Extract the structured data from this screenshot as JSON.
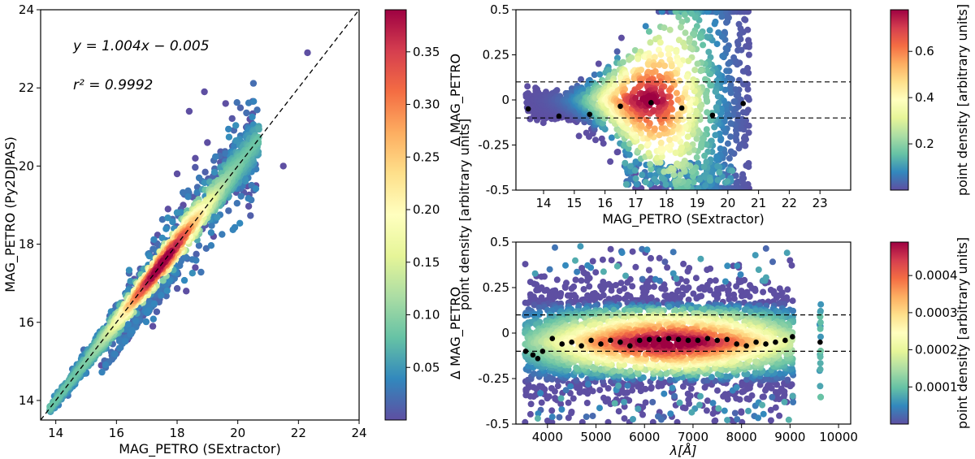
{
  "colors": {
    "colormap": [
      "#5e4fa2",
      "#3288bd",
      "#66c2a5",
      "#abdda4",
      "#e6f598",
      "#ffffbf",
      "#fee08b",
      "#fdae61",
      "#f46d43",
      "#d53e4f",
      "#9e0142"
    ],
    "outlier": "#5e4fa2",
    "median_marker": "#000000",
    "reference_line": "#000000"
  },
  "chart_data": [
    {
      "id": "left",
      "type": "scatter",
      "title": "",
      "xlabel": "MAG_PETRO (SExtractor)",
      "ylabel": "MAG_PETRO (Py2DJPAS)",
      "xlim": [
        13.5,
        24
      ],
      "ylim": [
        13.5,
        24
      ],
      "xticks": [
        "14",
        "16",
        "18",
        "20",
        "22",
        "24"
      ],
      "yticks": [
        "14",
        "16",
        "18",
        "20",
        "22",
        "24"
      ],
      "xtick_values": [
        14,
        16,
        18,
        20,
        22,
        24
      ],
      "ytick_values": [
        14,
        16,
        18,
        20,
        22,
        24
      ],
      "fit_text": "y = 1.004x − 0.005",
      "r2_text": "r² = 0.9992",
      "reference_line": {
        "slope": 1.0,
        "intercept": 0.0,
        "style": "dashed"
      },
      "colorbar": {
        "label": "point density [arbitrary units]",
        "range": [
          0.0,
          0.39
        ],
        "ticks": [
          "0.05",
          "0.10",
          "0.15",
          "0.20",
          "0.25",
          "0.30",
          "0.35"
        ],
        "tick_values": [
          0.05,
          0.1,
          0.15,
          0.2,
          0.25,
          0.3,
          0.35
        ]
      },
      "density_trend": [
        {
          "x": 13.8,
          "y": 13.8
        },
        {
          "x": 15.0,
          "y": 15.0
        },
        {
          "x": 16.0,
          "y": 16.0
        },
        {
          "x": 17.0,
          "y": 17.0
        },
        {
          "x": 18.0,
          "y": 18.0
        },
        {
          "x": 19.0,
          "y": 19.0
        },
        {
          "x": 20.0,
          "y": 20.0
        },
        {
          "x": 20.6,
          "y": 20.6
        }
      ],
      "outliers": [
        {
          "x": 22.3,
          "y": 22.9
        },
        {
          "x": 21.5,
          "y": 20.0
        },
        {
          "x": 18.9,
          "y": 21.9
        },
        {
          "x": 19.6,
          "y": 21.6
        },
        {
          "x": 20.4,
          "y": 21.2
        },
        {
          "x": 18.4,
          "y": 21.4
        },
        {
          "x": 20.6,
          "y": 19.5
        },
        {
          "x": 19.2,
          "y": 18.2
        },
        {
          "x": 18.3,
          "y": 16.8
        },
        {
          "x": 17.2,
          "y": 15.9
        },
        {
          "x": 16.0,
          "y": 15.2
        },
        {
          "x": 15.5,
          "y": 14.9
        },
        {
          "x": 16.6,
          "y": 16.0
        },
        {
          "x": 17.6,
          "y": 16.9
        },
        {
          "x": 18.6,
          "y": 17.4
        },
        {
          "x": 18.0,
          "y": 19.8
        },
        {
          "x": 18.6,
          "y": 20.2
        },
        {
          "x": 19.0,
          "y": 20.6
        },
        {
          "x": 17.7,
          "y": 18.9
        },
        {
          "x": 19.5,
          "y": 19.9
        },
        {
          "x": 19.9,
          "y": 20.3
        },
        {
          "x": 18.2,
          "y": 19.0
        },
        {
          "x": 17.4,
          "y": 17.6
        },
        {
          "x": 16.2,
          "y": 16.5
        }
      ]
    },
    {
      "id": "top-right",
      "type": "scatter",
      "title": "",
      "xlabel": "MAG_PETRO (SExtractor)",
      "ylabel": "Δ MAG_PETRO",
      "xlim": [
        13.1,
        24.0
      ],
      "ylim": [
        -0.5,
        0.5
      ],
      "xticks": [
        "14",
        "15",
        "16",
        "17",
        "18",
        "19",
        "20",
        "21",
        "22",
        "23"
      ],
      "yticks": [
        "-0.5",
        "-0.25",
        "0",
        "0.25",
        "0.5"
      ],
      "xtick_values": [
        14,
        15,
        16,
        17,
        18,
        19,
        20,
        21,
        22,
        23
      ],
      "ytick_values": [
        -0.5,
        -0.25,
        0,
        0.25,
        0.5
      ],
      "hlines": [
        0.1,
        -0.1
      ],
      "colorbar": {
        "label": "point density [arbitrary units]",
        "range": [
          0.0,
          0.78
        ],
        "ticks": [
          "0.2",
          "0.4",
          "0.6"
        ],
        "tick_values": [
          0.2,
          0.4,
          0.6
        ]
      },
      "medians": [
        {
          "x": 13.5,
          "y": -0.05
        },
        {
          "x": 14.5,
          "y": -0.09
        },
        {
          "x": 15.5,
          "y": -0.08
        },
        {
          "x": 16.5,
          "y": -0.035
        },
        {
          "x": 17.5,
          "y": -0.015
        },
        {
          "x": 18.5,
          "y": -0.045
        },
        {
          "x": 19.5,
          "y": -0.085
        },
        {
          "x": 20.5,
          "y": -0.02
        }
      ]
    },
    {
      "id": "bottom-right",
      "type": "scatter",
      "title": "",
      "xlabel": "λ[Å]",
      "ylabel": "Δ MAG_PETRO",
      "xlim": [
        3350,
        10250
      ],
      "ylim": [
        -0.5,
        0.5
      ],
      "xticks": [
        "4000",
        "5000",
        "6000",
        "7000",
        "8000",
        "9000",
        "10000"
      ],
      "yticks": [
        "-0.5",
        "-0.25",
        "0",
        "0.25",
        "0.5"
      ],
      "xtick_values": [
        4000,
        5000,
        6000,
        7000,
        8000,
        9000,
        10000
      ],
      "ytick_values": [
        -0.5,
        -0.25,
        0,
        0.25,
        0.5
      ],
      "hlines": [
        0.1,
        -0.1
      ],
      "colorbar": {
        "label": "point density [arbitrary units]",
        "range": [
          0.0,
          0.00049
        ],
        "ticks": [
          "0.0001",
          "0.0002",
          "0.0003",
          "0.0004"
        ],
        "tick_values": [
          0.0001,
          0.0002,
          0.0003,
          0.0004
        ]
      },
      "medians": [
        {
          "x": 3550,
          "y": -0.1
        },
        {
          "x": 3700,
          "y": -0.12
        },
        {
          "x": 3800,
          "y": -0.14
        },
        {
          "x": 3900,
          "y": -0.1
        },
        {
          "x": 4100,
          "y": -0.03
        },
        {
          "x": 4300,
          "y": -0.06
        },
        {
          "x": 4500,
          "y": -0.05
        },
        {
          "x": 4700,
          "y": -0.07
        },
        {
          "x": 4900,
          "y": -0.04
        },
        {
          "x": 5100,
          "y": -0.06
        },
        {
          "x": 5300,
          "y": -0.04
        },
        {
          "x": 5500,
          "y": -0.05
        },
        {
          "x": 5700,
          "y": -0.07
        },
        {
          "x": 5900,
          "y": -0.04
        },
        {
          "x": 6100,
          "y": -0.035
        },
        {
          "x": 6300,
          "y": -0.035
        },
        {
          "x": 6500,
          "y": -0.03
        },
        {
          "x": 6700,
          "y": -0.035
        },
        {
          "x": 6900,
          "y": -0.04
        },
        {
          "x": 7100,
          "y": -0.04
        },
        {
          "x": 7300,
          "y": -0.03
        },
        {
          "x": 7500,
          "y": -0.04
        },
        {
          "x": 7700,
          "y": -0.035
        },
        {
          "x": 7900,
          "y": -0.06
        },
        {
          "x": 8100,
          "y": -0.07
        },
        {
          "x": 8300,
          "y": -0.05
        },
        {
          "x": 8500,
          "y": -0.06
        },
        {
          "x": 8700,
          "y": -0.05
        },
        {
          "x": 8900,
          "y": -0.04
        },
        {
          "x": 9050,
          "y": -0.02
        },
        {
          "x": 9620,
          "y": -0.05
        }
      ]
    }
  ]
}
